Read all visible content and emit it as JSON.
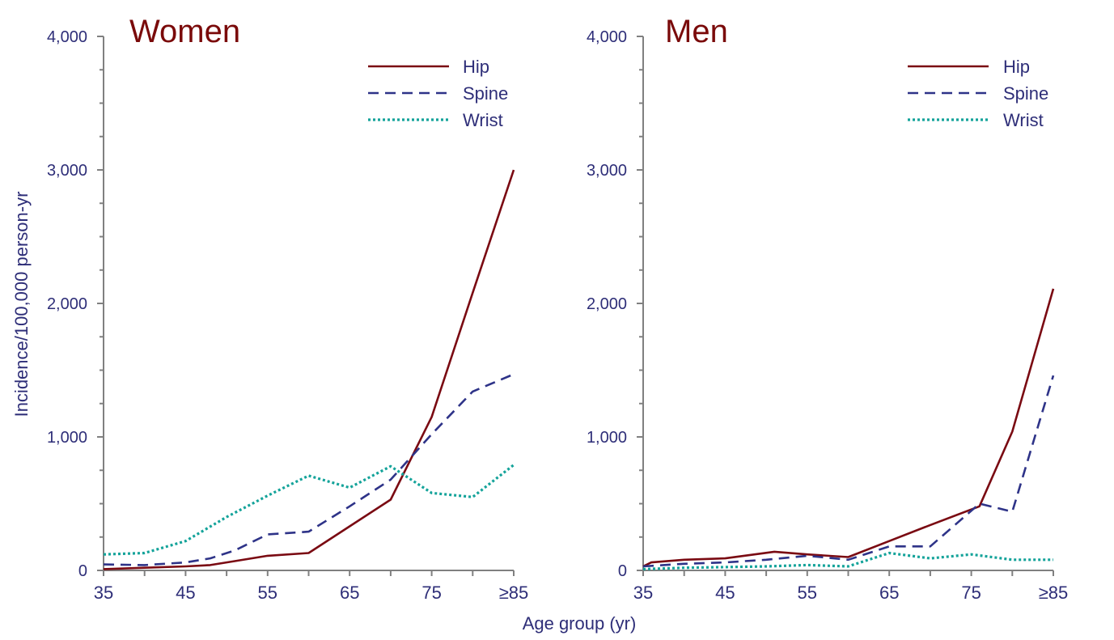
{
  "colors": {
    "hip": "#7a0a12",
    "spine": "#2e3388",
    "wrist": "#14a39a",
    "axis": "#808080",
    "text": "#2e2e78",
    "title": "#7a0a0a"
  },
  "shared": {
    "xlabel": "Age group (yr)",
    "ylabel": "Incidence/100,000 person-yr"
  },
  "chart_data": [
    {
      "type": "line",
      "title": "Women",
      "xlabel": "Age group (yr)",
      "ylabel": "Incidence/100,000 person-yr",
      "ylim": [
        0,
        4000
      ],
      "xlim": [
        35,
        85
      ],
      "x_ticks": [
        35,
        45,
        55,
        65,
        75,
        85
      ],
      "x_tick_labels": [
        "35",
        "45",
        "55",
        "65",
        "75",
        "≥85"
      ],
      "y_ticks": [
        0,
        1000,
        2000,
        3000,
        4000
      ],
      "y_tick_labels": [
        "0",
        "1,000",
        "2,000",
        "3,000",
        "4,000"
      ],
      "legend_position": "top-right",
      "series": [
        {
          "name": "Hip",
          "style": "solid",
          "points": [
            [
              35,
              10
            ],
            [
              40,
              20
            ],
            [
              45,
              30
            ],
            [
              48,
              40
            ],
            [
              51,
              70
            ],
            [
              55,
              110
            ],
            [
              60,
              130
            ],
            [
              65,
              330
            ],
            [
              70,
              530
            ],
            [
              75,
              1150
            ],
            [
              80,
              2080
            ],
            [
              85,
              3000
            ]
          ]
        },
        {
          "name": "Spine",
          "style": "dashed",
          "points": [
            [
              35,
              45
            ],
            [
              40,
              40
            ],
            [
              45,
              60
            ],
            [
              48,
              90
            ],
            [
              51,
              150
            ],
            [
              55,
              270
            ],
            [
              60,
              290
            ],
            [
              65,
              480
            ],
            [
              70,
              680
            ],
            [
              75,
              1020
            ],
            [
              80,
              1340
            ],
            [
              85,
              1470
            ]
          ]
        },
        {
          "name": "Wrist",
          "style": "dotted",
          "points": [
            [
              35,
              120
            ],
            [
              40,
              130
            ],
            [
              45,
              220
            ],
            [
              50,
              400
            ],
            [
              55,
              560
            ],
            [
              60,
              710
            ],
            [
              65,
              620
            ],
            [
              70,
              780
            ],
            [
              75,
              580
            ],
            [
              80,
              550
            ],
            [
              85,
              790
            ]
          ]
        }
      ]
    },
    {
      "type": "line",
      "title": "Men",
      "xlabel": "Age group (yr)",
      "ylabel": "Incidence/100,000 person-yr",
      "ylim": [
        0,
        4000
      ],
      "xlim": [
        35,
        85
      ],
      "x_ticks": [
        35,
        45,
        55,
        65,
        75,
        85
      ],
      "x_tick_labels": [
        "35",
        "45",
        "55",
        "65",
        "75",
        "≥85"
      ],
      "y_ticks": [
        0,
        1000,
        2000,
        3000,
        4000
      ],
      "y_tick_labels": [
        "0",
        "1,000",
        "2,000",
        "3,000",
        "4,000"
      ],
      "legend_position": "top-right",
      "series": [
        {
          "name": "Hip",
          "style": "solid",
          "points": [
            [
              35,
              30
            ],
            [
              36,
              60
            ],
            [
              40,
              80
            ],
            [
              45,
              90
            ],
            [
              51,
              140
            ],
            [
              55,
              120
            ],
            [
              60,
              100
            ],
            [
              65,
              220
            ],
            [
              70,
              340
            ],
            [
              76,
              480
            ],
            [
              80,
              1040
            ],
            [
              85,
              2110
            ]
          ]
        },
        {
          "name": "Spine",
          "style": "dashed",
          "points": [
            [
              35,
              30
            ],
            [
              40,
              50
            ],
            [
              45,
              60
            ],
            [
              50,
              80
            ],
            [
              55,
              110
            ],
            [
              60,
              80
            ],
            [
              65,
              180
            ],
            [
              70,
              180
            ],
            [
              76,
              500
            ],
            [
              80,
              440
            ],
            [
              85,
              1460
            ]
          ]
        },
        {
          "name": "Wrist",
          "style": "dotted",
          "points": [
            [
              35,
              10
            ],
            [
              40,
              20
            ],
            [
              45,
              25
            ],
            [
              50,
              30
            ],
            [
              55,
              40
            ],
            [
              60,
              30
            ],
            [
              65,
              130
            ],
            [
              70,
              90
            ],
            [
              75,
              120
            ],
            [
              80,
              80
            ],
            [
              85,
              80
            ]
          ]
        }
      ]
    }
  ]
}
